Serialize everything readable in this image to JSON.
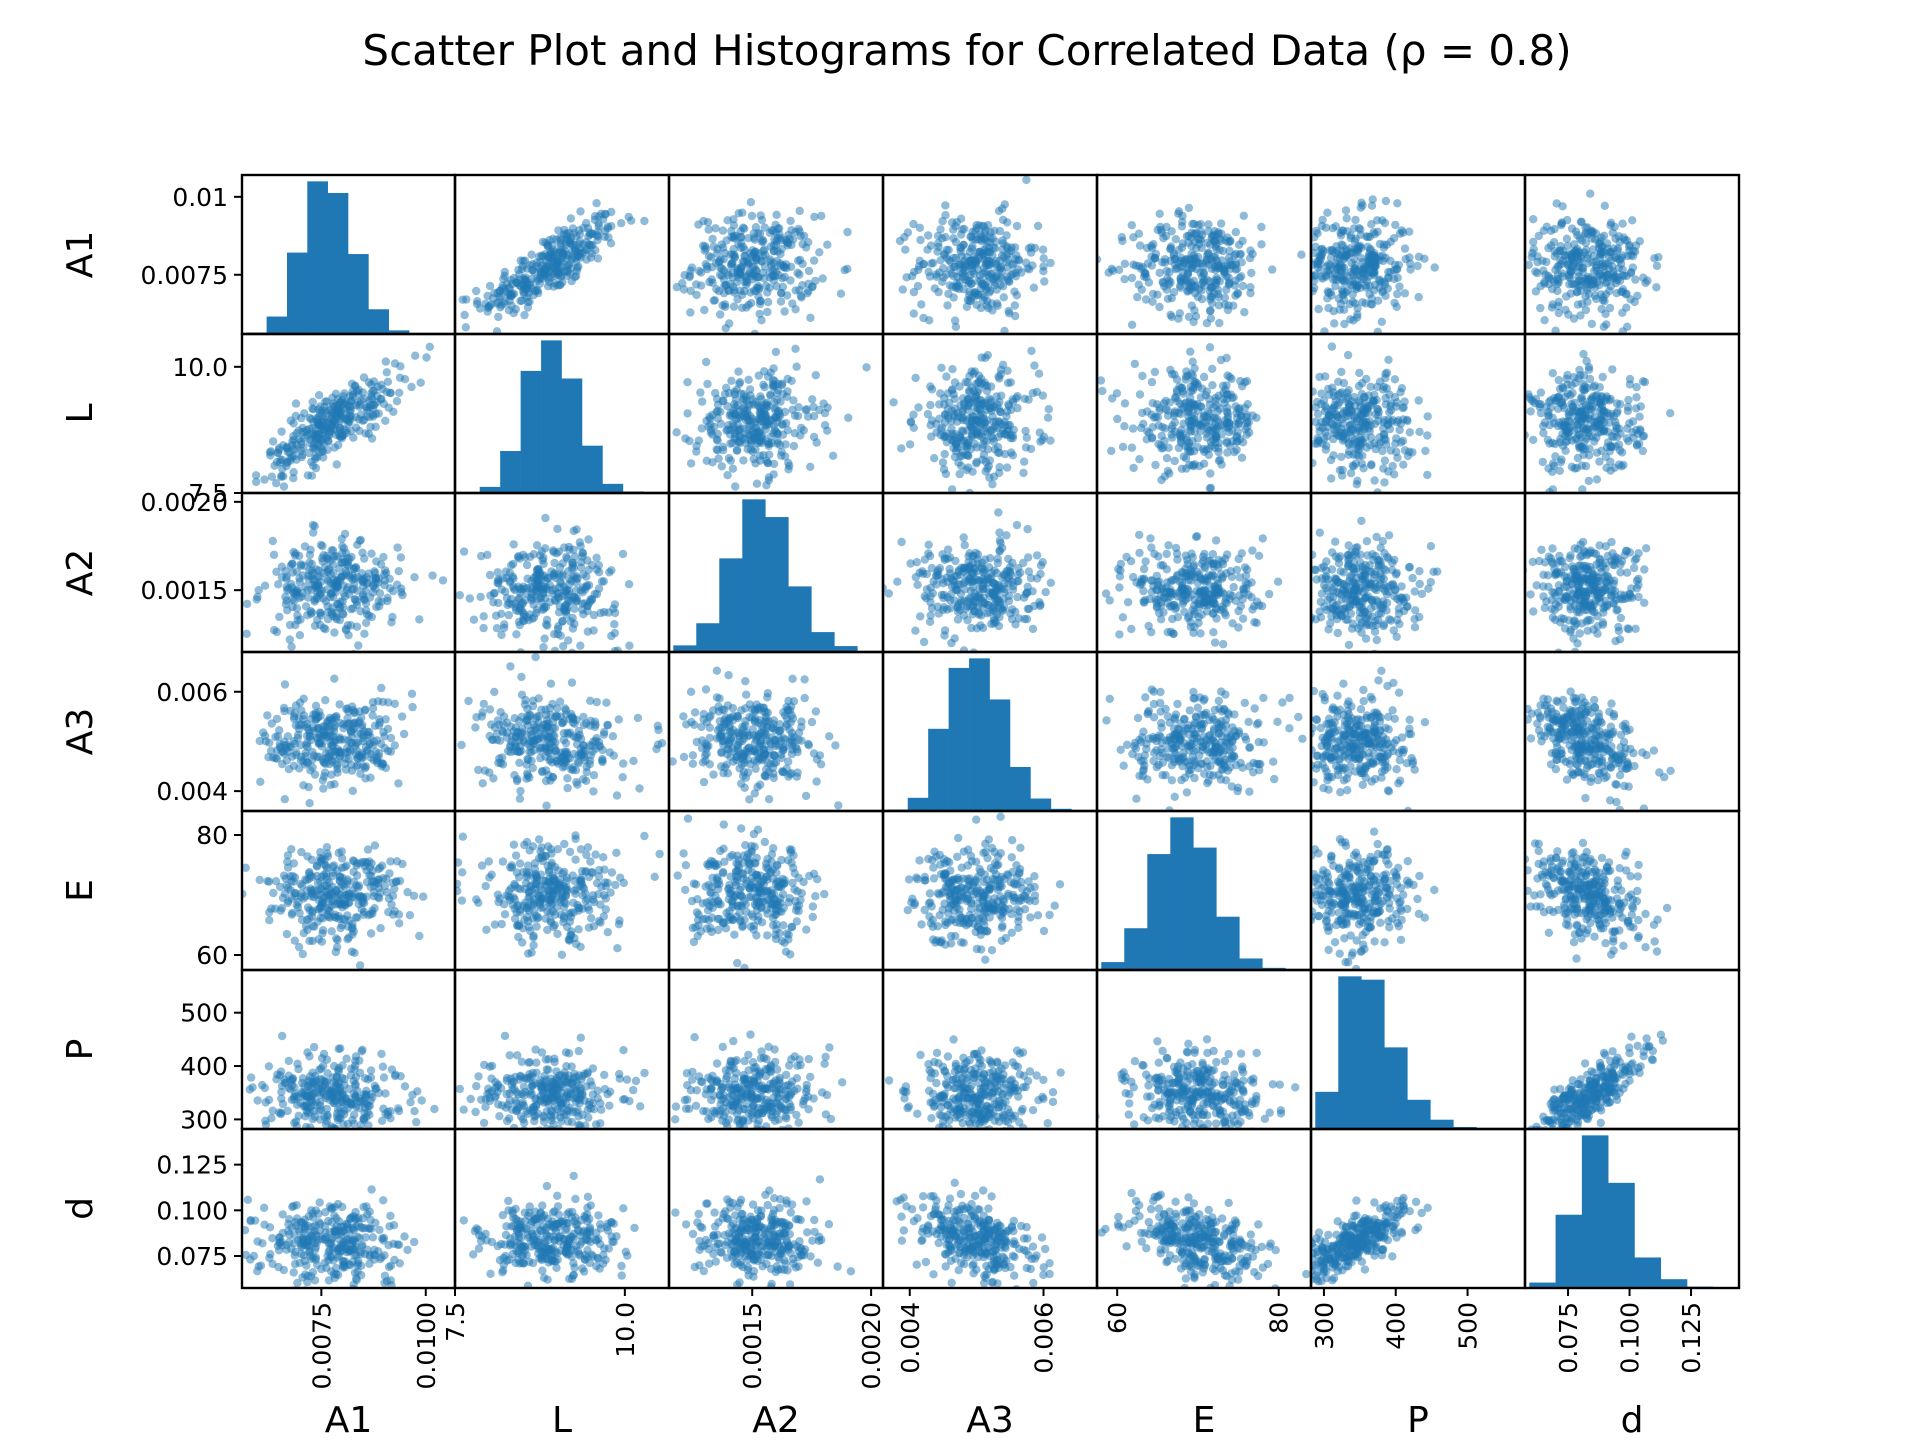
{
  "chart_data": {
    "type": "scatter",
    "subtype": "scatter-matrix",
    "title": "Scatter Plot and Histograms for Correlated Data (ρ = 0.8)",
    "diagonal": "histogram",
    "point_color": "#1f77b4",
    "point_alpha": 0.5,
    "n_points_estimate": 5000,
    "variables": [
      {
        "name": "A1",
        "range": [
          0.0056,
          0.0107
        ],
        "mean": 0.0078,
        "std": 0.0008,
        "yticks": [
          "0.01",
          "0.0075"
        ],
        "ytick_values": [
          0.01,
          0.0075
        ],
        "xticks": [
          "0.0075",
          "0.0100"
        ],
        "xtick_values": [
          0.0075,
          0.01
        ],
        "hist_counts": [
          2,
          24,
          112,
          210,
          194,
          110,
          34,
          5,
          1
        ]
      },
      {
        "name": "L",
        "range": [
          7.5,
          10.65
        ],
        "mean": 8.9,
        "std": 0.5,
        "yticks": [
          "10.0",
          "7.5"
        ],
        "ytick_values": [
          10.0,
          7.5
        ],
        "xticks": [
          "7.5",
          "10.0"
        ],
        "xtick_values": [
          7.5,
          10.0
        ],
        "hist_counts": [
          1,
          8,
          55,
          160,
          200,
          150,
          62,
          12,
          2
        ]
      },
      {
        "name": "A2",
        "range": [
          0.00115,
          0.00205
        ],
        "mean": 0.00151,
        "std": 0.00013,
        "yticks": [
          "0.0020",
          "0.0015"
        ],
        "ytick_values": [
          0.002,
          0.0015
        ],
        "xticks": [
          "0.0015",
          "0.0020"
        ],
        "xtick_values": [
          0.0015,
          0.002
        ],
        "hist_counts": [
          9,
          39,
          127,
          207,
          183,
          89,
          27,
          8
        ]
      },
      {
        "name": "A3",
        "range": [
          0.0036,
          0.0068
        ],
        "mean": 0.005,
        "std": 0.00045,
        "yticks": [
          "0.006",
          "0.004"
        ],
        "ytick_values": [
          0.006,
          0.004
        ],
        "xticks": [
          "0.004",
          "0.006"
        ],
        "xtick_values": [
          0.004,
          0.006
        ],
        "hist_counts": [
          2,
          18,
          112,
          195,
          208,
          152,
          60,
          17,
          3
        ]
      },
      {
        "name": "E",
        "range": [
          57.5,
          84
        ],
        "mean": 70,
        "std": 4,
        "yticks": [
          "80",
          "60"
        ],
        "ytick_values": [
          80,
          60
        ],
        "xticks": [
          "60",
          "80"
        ],
        "xtick_values": [
          60,
          80
        ],
        "hist_counts": [
          11,
          58,
          161,
          212,
          170,
          74,
          16,
          3
        ]
      },
      {
        "name": "P",
        "range": [
          282,
          580
        ],
        "mean": 345,
        "std": 38,
        "yticks": [
          "500",
          "400",
          "300"
        ],
        "ytick_values": [
          500,
          400,
          300
        ],
        "xticks": [
          "300",
          "400",
          "500"
        ],
        "xtick_values": [
          300,
          400,
          500
        ],
        "hist_counts": [
          56,
          230,
          225,
          123,
          44,
          14,
          3,
          1
        ]
      },
      {
        "name": "d",
        "range": [
          0.0575,
          0.1445
        ],
        "mean": 0.083,
        "std": 0.011,
        "yticks": [
          "0.125",
          "0.100",
          "0.075"
        ],
        "ytick_values": [
          0.125,
          0.1,
          0.075
        ],
        "xticks": [
          "0.075",
          "0.100",
          "0.125"
        ],
        "xtick_values": [
          0.075,
          0.1,
          0.125
        ],
        "hist_counts": [
          8,
          108,
          225,
          155,
          45,
          13,
          2
        ]
      }
    ],
    "correlations": [
      {
        "pair": [
          "A1",
          "L"
        ],
        "r": 0.8
      },
      {
        "pair": [
          "P",
          "d"
        ],
        "r": 0.8
      },
      {
        "pair": [
          "A3",
          "d"
        ],
        "r": -0.45
      },
      {
        "pair": [
          "E",
          "d"
        ],
        "r": -0.4
      }
    ]
  }
}
